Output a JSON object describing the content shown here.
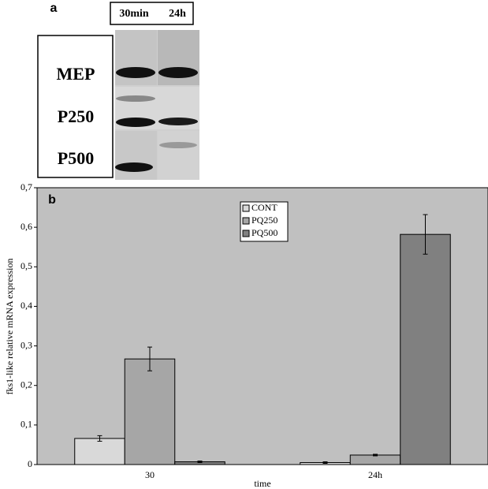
{
  "gel": {
    "label": "a",
    "columns": [
      "30min",
      "24h"
    ],
    "rows": [
      "MEP",
      "P250",
      "P500"
    ]
  },
  "chart_data": {
    "type": "bar",
    "panel_label": "b",
    "x_label": "time",
    "y_label": "fks1-like relative mRNA expression",
    "categories": [
      "30",
      "24h"
    ],
    "series": [
      {
        "name": "CONT",
        "color": "#d9d9d9",
        "values": [
          0.066,
          0.005
        ],
        "errors": [
          0.007,
          0.002
        ]
      },
      {
        "name": "PQ250",
        "color": "#a6a6a6",
        "values": [
          0.267,
          0.024
        ],
        "errors": [
          0.03,
          0.002
        ]
      },
      {
        "name": "PQ500",
        "color": "#808080",
        "values": [
          0.007,
          0.582
        ],
        "errors": [
          0.002,
          0.05
        ]
      }
    ],
    "ylim": [
      0,
      0.7
    ],
    "yticks": [
      0,
      {
        "value": 0.1,
        "label": "0,1"
      },
      {
        "value": 0.2,
        "label": "0,2"
      },
      {
        "value": 0.3,
        "label": "0,3"
      },
      {
        "value": 0.4,
        "label": "0,4"
      },
      {
        "value": 0.5,
        "label": "0,5"
      },
      {
        "value": 0.6,
        "label": "0,6"
      },
      {
        "value": 0.7,
        "label": "0,7"
      }
    ],
    "background": "#c0c0c0",
    "legend": "top"
  }
}
